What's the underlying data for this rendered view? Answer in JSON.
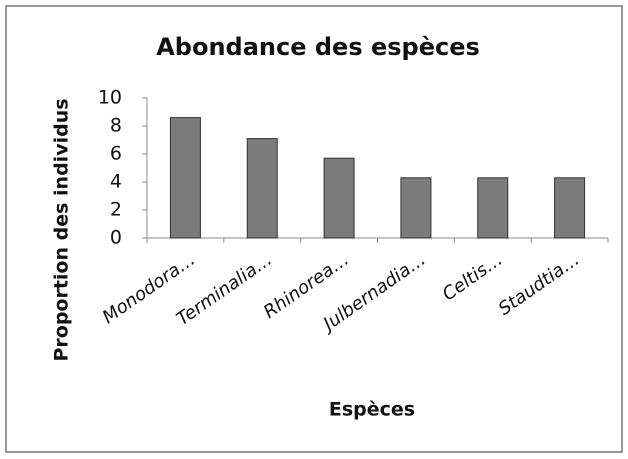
{
  "chart_data": {
    "type": "bar",
    "title": "Abondance des espèces",
    "xlabel": "Espèces",
    "ylabel": "Proportion des individus",
    "categories": [
      "Monodora…",
      "Terminalia…",
      "Rhinorea…",
      "Julbernadia…",
      "Celtis…",
      "Staudtia…"
    ],
    "values": [
      8.6,
      7.1,
      5.7,
      4.3,
      4.3,
      4.3
    ],
    "color": "#7b7b7b",
    "ylim": [
      0,
      10
    ],
    "yticks": [
      0,
      2,
      4,
      6,
      8,
      10
    ],
    "grid": false
  }
}
